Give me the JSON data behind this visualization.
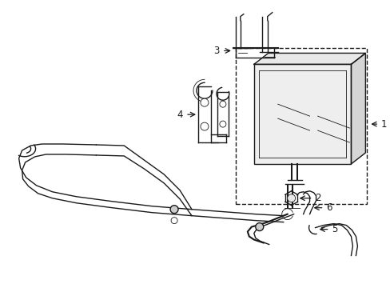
{
  "bg_color": "#ffffff",
  "line_color": "#1a1a1a",
  "lw": 1.0,
  "tlw": 0.6,
  "fs": 8.5,
  "figsize": [
    4.89,
    3.6
  ],
  "dpi": 100,
  "xlim": [
    0,
    489
  ],
  "ylim": [
    0,
    360
  ]
}
